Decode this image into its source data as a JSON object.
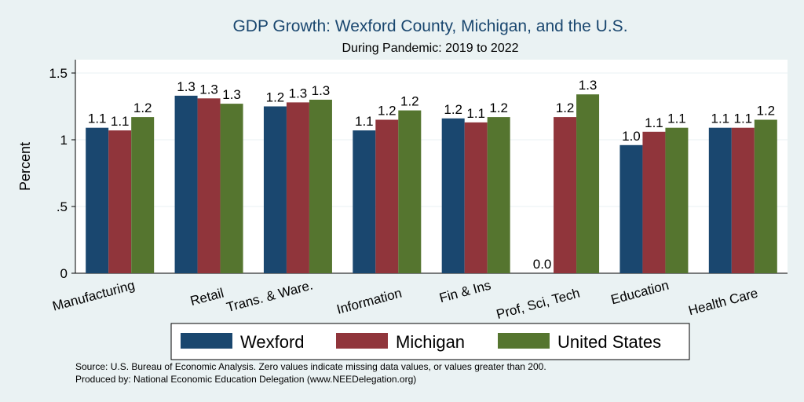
{
  "chart_data": {
    "type": "bar",
    "title": "GDP Growth: Wexford County, Michigan, and the U.S.",
    "subtitle": "During Pandemic: 2019 to 2022",
    "ylabel": "Percent",
    "xlabel": "",
    "ylim": [
      0,
      1.6
    ],
    "yticks": [
      0,
      0.5,
      1,
      1.5
    ],
    "ytick_labels": [
      "0",
      ".5",
      "1",
      "1.5"
    ],
    "grid": true,
    "legend_position": "bottom",
    "categories": [
      "Manufacturing",
      "Retail",
      "Trans. & Ware.",
      "Information",
      "Fin & Ins",
      "Prof, Sci, Tech",
      "Education",
      "Health Care"
    ],
    "series": [
      {
        "name": "Wexford",
        "color": "#1a476f",
        "values": [
          1.09,
          1.33,
          1.25,
          1.07,
          1.16,
          0.0,
          0.96,
          1.09
        ],
        "labels": [
          "1.1",
          "1.3",
          "1.2",
          "1.1",
          "1.2",
          "0.0",
          "1.0",
          "1.1"
        ]
      },
      {
        "name": "Michigan",
        "color": "#90353b",
        "values": [
          1.07,
          1.31,
          1.28,
          1.15,
          1.13,
          1.17,
          1.06,
          1.09
        ],
        "labels": [
          "1.1",
          "1.3",
          "1.3",
          "1.2",
          "1.1",
          "1.2",
          "1.1",
          "1.1"
        ]
      },
      {
        "name": "United States",
        "color": "#55752f",
        "values": [
          1.17,
          1.27,
          1.3,
          1.22,
          1.17,
          1.34,
          1.09,
          1.15
        ],
        "labels": [
          "1.2",
          "1.3",
          "1.3",
          "1.2",
          "1.2",
          "1.3",
          "1.1",
          "1.2"
        ]
      }
    ]
  },
  "notes": {
    "source": "Source: U.S. Bureau of Economic Analysis. Zero values indicate missing data values, or values greater than 200.",
    "produced": "Produced by: National Economic Education Delegation (www.NEEDelegation.org)"
  }
}
